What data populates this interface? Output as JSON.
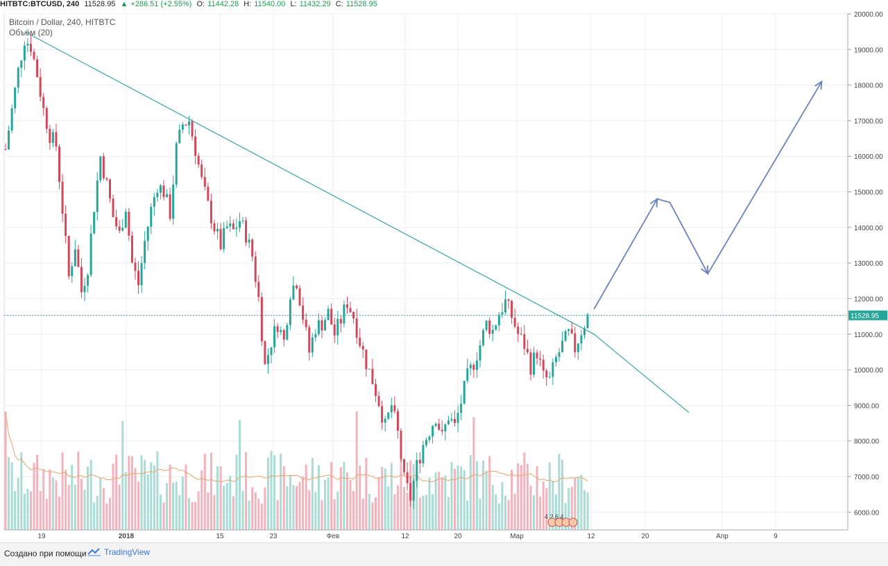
{
  "header": {
    "symbol": "HITBTC:BTCUSD, 240",
    "close": "11528.95",
    "change": "+286.51 (+2.55%)",
    "o_label": "O:",
    "o_value": "11442.28",
    "h_label": "H:",
    "h_value": "11540.00",
    "l_label": "L:",
    "l_value": "11432.29",
    "c_label": "C:",
    "c_value": "11528.95"
  },
  "legend": {
    "title": "Bitcoin / Dollar, 240, HITBTC",
    "volume": "Объём (20)"
  },
  "footer": {
    "made_with": "Создано при помощи",
    "brand": "TradingView"
  },
  "events_badge": "4 2 6 4",
  "colors": {
    "up": "#26a69a",
    "down": "#d2475a",
    "trendline": "#3aa5a0",
    "arrow": "#6a82bf",
    "price_line": "#3d9bb0",
    "vol_ma": "#e8a56a"
  },
  "chart_data": {
    "type": "candlestick",
    "y_axis": {
      "min": 5500,
      "max": 20000,
      "ticks": [
        "20000.00",
        "19000.00",
        "18000.00",
        "17000.00",
        "16000.00",
        "15000.00",
        "14000.00",
        "13000.00",
        "12000.00",
        "11000.00",
        "10000.00",
        "9000.00",
        "8000.00",
        "7000.00",
        "6000.00"
      ]
    },
    "x_axis": {
      "ticks": [
        {
          "label": "19",
          "bold": false
        },
        {
          "label": "2018",
          "bold": true
        },
        {
          "label": "15",
          "bold": false
        },
        {
          "label": "23",
          "bold": false
        },
        {
          "label": "Фев",
          "bold": false
        },
        {
          "label": "12",
          "bold": false
        },
        {
          "label": "20",
          "bold": false
        },
        {
          "label": "Мар",
          "bold": false
        },
        {
          "label": "12",
          "bold": false
        },
        {
          "label": "20",
          "bold": false
        },
        {
          "label": "Апр",
          "bold": false
        },
        {
          "label": "9",
          "bold": false
        }
      ]
    },
    "current_price_label": "11528.95",
    "current_price": 11528.95,
    "price_path": [
      [
        0,
        16200
      ],
      [
        2,
        17300
      ],
      [
        4,
        18400
      ],
      [
        6,
        19300
      ],
      [
        8,
        19100
      ],
      [
        10,
        18300
      ],
      [
        12,
        17300
      ],
      [
        14,
        16600
      ],
      [
        16,
        16300
      ],
      [
        18,
        14500
      ],
      [
        20,
        12600
      ],
      [
        22,
        13500
      ],
      [
        24,
        12200
      ],
      [
        26,
        12900
      ],
      [
        28,
        14600
      ],
      [
        30,
        16000
      ],
      [
        32,
        15200
      ],
      [
        34,
        14300
      ],
      [
        36,
        13800
      ],
      [
        38,
        14600
      ],
      [
        40,
        13000
      ],
      [
        42,
        12400
      ],
      [
        44,
        13600
      ],
      [
        46,
        14500
      ],
      [
        48,
        15200
      ],
      [
        50,
        15000
      ],
      [
        52,
        14400
      ],
      [
        54,
        16200
      ],
      [
        56,
        16900
      ],
      [
        58,
        17000
      ],
      [
        60,
        16200
      ],
      [
        62,
        15300
      ],
      [
        64,
        14600
      ],
      [
        66,
        14000
      ],
      [
        68,
        13500
      ],
      [
        70,
        14000
      ],
      [
        72,
        13900
      ],
      [
        74,
        14200
      ],
      [
        76,
        13800
      ],
      [
        78,
        13200
      ],
      [
        80,
        12000
      ],
      [
        82,
        10100
      ],
      [
        84,
        10800
      ],
      [
        86,
        11300
      ],
      [
        88,
        10800
      ],
      [
        90,
        12200
      ],
      [
        92,
        12500
      ],
      [
        94,
        11500
      ],
      [
        96,
        10500
      ],
      [
        98,
        11200
      ],
      [
        100,
        11300
      ],
      [
        102,
        11600
      ],
      [
        104,
        11000
      ],
      [
        106,
        11400
      ],
      [
        108,
        11900
      ],
      [
        110,
        11500
      ],
      [
        112,
        10800
      ],
      [
        114,
        10200
      ],
      [
        116,
        9700
      ],
      [
        118,
        9100
      ],
      [
        120,
        8400
      ],
      [
        122,
        9000
      ],
      [
        124,
        8200
      ],
      [
        126,
        6900
      ],
      [
        128,
        6400
      ],
      [
        130,
        7300
      ],
      [
        132,
        7900
      ],
      [
        134,
        8300
      ],
      [
        136,
        8700
      ],
      [
        138,
        8100
      ],
      [
        140,
        8700
      ],
      [
        142,
        8400
      ],
      [
        144,
        9100
      ],
      [
        146,
        9800
      ],
      [
        148,
        10200
      ],
      [
        150,
        10700
      ],
      [
        152,
        11300
      ],
      [
        154,
        11100
      ],
      [
        156,
        11600
      ],
      [
        158,
        11900
      ],
      [
        160,
        11500
      ],
      [
        162,
        11000
      ],
      [
        164,
        10700
      ],
      [
        166,
        10100
      ],
      [
        168,
        10500
      ],
      [
        170,
        9800
      ],
      [
        172,
        9700
      ],
      [
        174,
        10300
      ],
      [
        176,
        10700
      ],
      [
        178,
        11000
      ],
      [
        180,
        10600
      ],
      [
        182,
        11100
      ],
      [
        184,
        11500
      ]
    ],
    "trendline": [
      [
        6,
        19500
      ],
      [
        186,
        11000
      ],
      [
        216,
        8800
      ]
    ],
    "projection_arrow": [
      [
        186,
        11700
      ],
      [
        206,
        14800
      ],
      [
        210,
        14700
      ],
      [
        222,
        12700
      ],
      [
        258,
        18100
      ]
    ],
    "volume": {
      "ma_period": 20,
      "max": 100
    }
  }
}
